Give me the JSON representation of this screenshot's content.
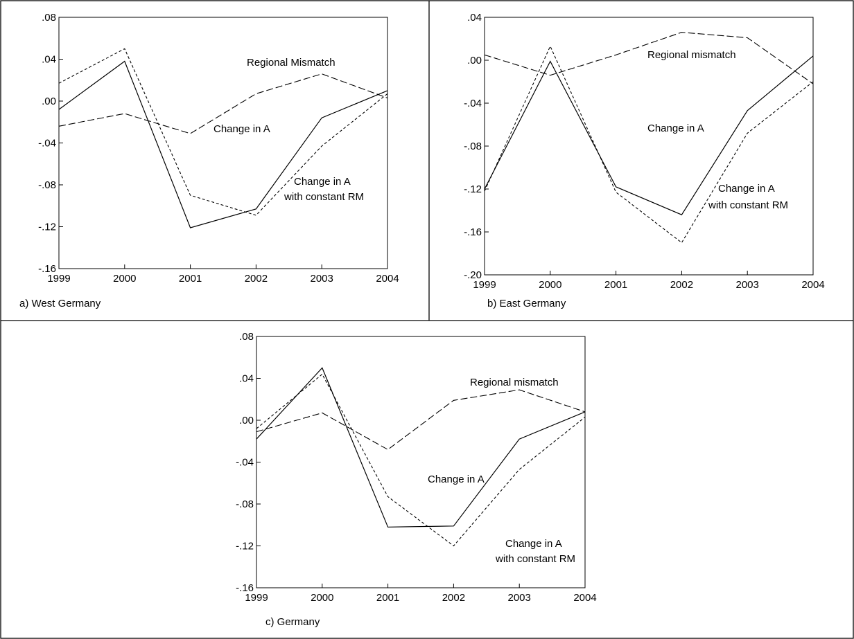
{
  "chart_data": [
    {
      "type": "line",
      "caption": "a) West Germany",
      "x": [
        "1999",
        "2000",
        "2001",
        "2002",
        "2003",
        "2004"
      ],
      "ylim": [
        -0.16,
        0.08
      ],
      "yticks": [
        ".08",
        ".04",
        ".00",
        "-.04",
        "-.08",
        "-.12",
        "-.16"
      ],
      "yticks_values": [
        0.08,
        0.04,
        0.0,
        -0.04,
        -0.08,
        -0.12,
        -0.16
      ],
      "grid": false,
      "series": [
        {
          "name": "Change in A",
          "style": "solid",
          "values": [
            -0.008,
            0.038,
            -0.121,
            -0.103,
            -0.016,
            0.01
          ]
        },
        {
          "name": "Change in A with constant RM",
          "style": "short-dash",
          "values": [
            0.017,
            0.05,
            -0.09,
            -0.109,
            -0.043,
            0.007
          ]
        },
        {
          "name": "Regional Mismatch",
          "style": "long-dash",
          "values": [
            -0.024,
            -0.012,
            -0.031,
            0.007,
            0.026,
            0.003
          ]
        }
      ],
      "annotations": [
        {
          "text": "Regional Mismatch"
        },
        {
          "text": "Change in A"
        },
        {
          "text": "Change in A"
        },
        {
          "text": "with constant RM"
        }
      ]
    },
    {
      "type": "line",
      "caption": "b) East Germany",
      "x": [
        "1999",
        "2000",
        "2001",
        "2002",
        "2003",
        "2004"
      ],
      "ylim": [
        -0.2,
        0.04
      ],
      "yticks": [
        ".04",
        ".00",
        "-.04",
        "-.08",
        "-.12",
        "-.16",
        "-.20"
      ],
      "yticks_values": [
        0.04,
        0.0,
        -0.04,
        -0.08,
        -0.12,
        -0.16,
        -0.2
      ],
      "grid": false,
      "series": [
        {
          "name": "Change in A",
          "style": "solid",
          "values": [
            -0.12,
            -0.001,
            -0.118,
            -0.144,
            -0.047,
            0.004
          ]
        },
        {
          "name": "Change in A with constant RM",
          "style": "short-dash",
          "values": [
            -0.122,
            0.013,
            -0.123,
            -0.17,
            -0.068,
            -0.02
          ]
        },
        {
          "name": "Regional mismatch",
          "style": "long-dash",
          "values": [
            0.005,
            -0.014,
            0.005,
            0.026,
            0.021,
            -0.022
          ]
        }
      ],
      "annotations": [
        {
          "text": "Regional mismatch"
        },
        {
          "text": "Change in A"
        },
        {
          "text": "Change in A"
        },
        {
          "text": "with constant RM"
        }
      ]
    },
    {
      "type": "line",
      "caption": "c) Germany",
      "x": [
        "1999",
        "2000",
        "2001",
        "2002",
        "2003",
        "2004"
      ],
      "ylim": [
        -0.16,
        0.08
      ],
      "yticks": [
        ".08",
        ".04",
        ".00",
        "-.04",
        "-.08",
        "-.12",
        "-.16"
      ],
      "yticks_values": [
        0.08,
        0.04,
        0.0,
        -0.04,
        -0.08,
        -0.12,
        -0.16
      ],
      "grid": false,
      "series": [
        {
          "name": "Change in A",
          "style": "solid",
          "values": [
            -0.018,
            0.05,
            -0.102,
            -0.101,
            -0.018,
            0.008
          ]
        },
        {
          "name": "Change in A with constant RM",
          "style": "short-dash",
          "values": [
            -0.008,
            0.044,
            -0.073,
            -0.12,
            -0.047,
            0.003
          ]
        },
        {
          "name": "Regional mismatch",
          "style": "long-dash",
          "values": [
            -0.011,
            0.007,
            -0.028,
            0.019,
            0.029,
            0.008
          ]
        }
      ],
      "annotations": [
        {
          "text": "Regional mismatch"
        },
        {
          "text": "Change in A"
        },
        {
          "text": "Change in A"
        },
        {
          "text": "with constant RM"
        }
      ]
    }
  ]
}
